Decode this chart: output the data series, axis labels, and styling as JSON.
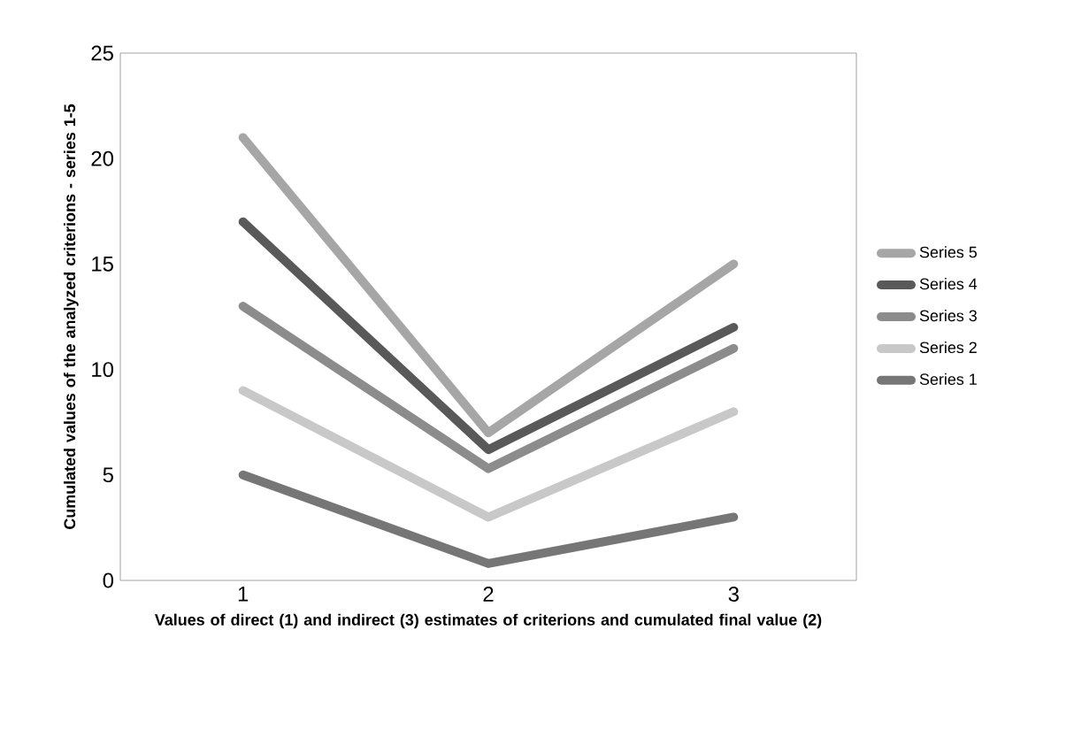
{
  "chart_data": {
    "type": "line",
    "xlabel": "Values of direct (1) and indirect  (3) estimates of criterions and cumulated final value (2)",
    "ylabel": "Cumulated values of the analyzed criterions - series 1-5",
    "categories": [
      "1",
      "2",
      "3"
    ],
    "ylim": [
      0,
      25
    ],
    "yticks": [
      0,
      5,
      10,
      15,
      20,
      25
    ],
    "legend": "right",
    "marker": "none",
    "line_style": "solid",
    "series": [
      {
        "name": "Series 1",
        "color": "#767676",
        "values": [
          5,
          0.8,
          3
        ]
      },
      {
        "name": "Series 2",
        "color": "#c8c8c8",
        "values": [
          9,
          3,
          8
        ]
      },
      {
        "name": "Series 3",
        "color": "#8c8c8c",
        "values": [
          13,
          5.3,
          11
        ]
      },
      {
        "name": "Series 4",
        "color": "#595959",
        "values": [
          17,
          6.2,
          12
        ]
      },
      {
        "name": "Series 5",
        "color": "#a6a6a6",
        "values": [
          21,
          7,
          15
        ]
      }
    ]
  }
}
